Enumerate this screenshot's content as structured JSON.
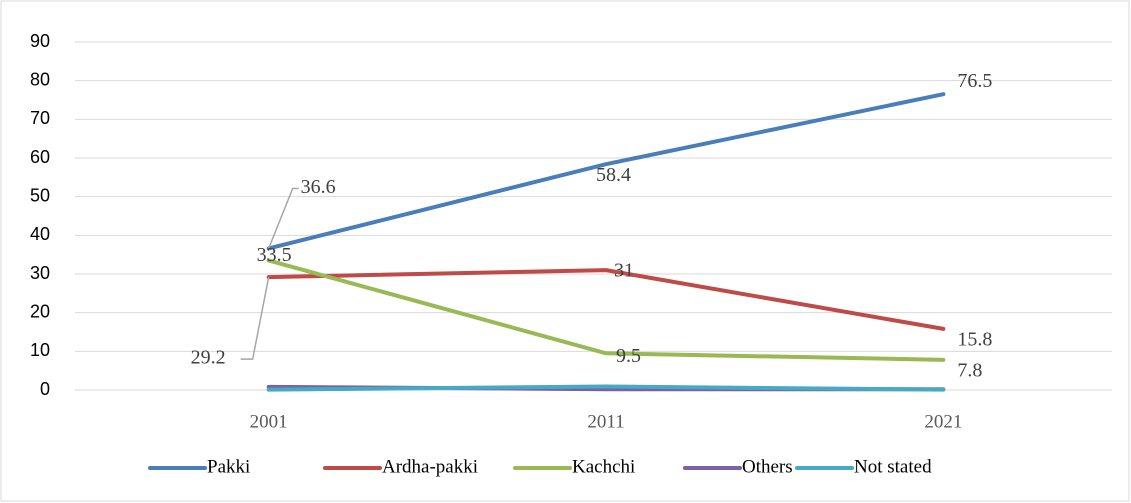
{
  "chart_data": {
    "type": "line",
    "categories": [
      "2001",
      "2011",
      "2021"
    ],
    "series": [
      {
        "name": "Pakki",
        "color": "#4a7ebb",
        "values": [
          36.6,
          58.4,
          76.5
        ],
        "data_labels": true
      },
      {
        "name": "Ardha-pakki",
        "color": "#be4b48",
        "values": [
          29.2,
          31,
          15.8
        ],
        "data_labels": true
      },
      {
        "name": "Kachchi",
        "color": "#98b954",
        "values": [
          33.5,
          9.5,
          7.8
        ],
        "data_labels": true
      },
      {
        "name": "Others",
        "color": "#7d60a0",
        "values": [
          0.8,
          0.2,
          0.2
        ],
        "data_labels": false
      },
      {
        "name": "Not stated",
        "color": "#46aac5",
        "values": [
          0.1,
          0.9,
          0.1
        ],
        "data_labels": false
      }
    ],
    "ylim": [
      0,
      90
    ],
    "yticks": [
      0,
      10,
      20,
      30,
      40,
      50,
      60,
      70,
      80,
      90
    ],
    "grid": true,
    "legend": "bottom"
  }
}
